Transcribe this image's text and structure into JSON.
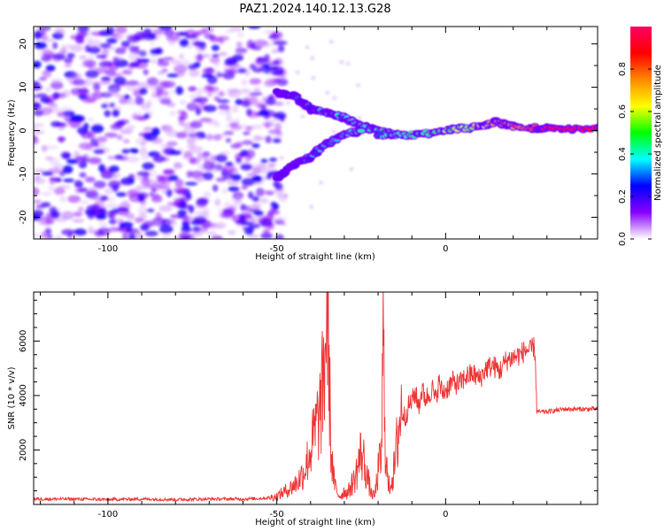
{
  "title": "PAZ1.2024.140.12.13.G28",
  "chart_data": [
    {
      "type": "heatmap",
      "xlabel": "Height of straight line (km)",
      "ylabel": "Frequency (Hz)",
      "xlim": [
        -122,
        45
      ],
      "ylim": [
        -25,
        24
      ],
      "x_ticks": [
        -100,
        -50,
        0
      ],
      "y_ticks": [
        -20,
        -10,
        0,
        10,
        20
      ],
      "colorbar": {
        "label": "Normalized spectral amplitude",
        "range": [
          0,
          1
        ],
        "ticks": [
          0.0,
          0.2,
          0.4,
          0.6,
          0.8
        ],
        "colormap": "gist_rainbow_r",
        "stops": [
          "#ffffff",
          "#8800ff",
          "#0000ff",
          "#00ffff",
          "#00ff00",
          "#ffff00",
          "#ff8800",
          "#ff0000",
          "#ff0066"
        ]
      },
      "noise_region": {
        "x": [
          -122,
          -50
        ],
        "y": [
          -25,
          24
        ],
        "level": 0.2
      },
      "signal_track": {
        "upper_branch": [
          [
            -50,
            9
          ],
          [
            -45,
            8
          ],
          [
            -40,
            5
          ],
          [
            -35,
            4
          ],
          [
            -30,
            3
          ],
          [
            -25,
            1
          ],
          [
            -20,
            0
          ],
          [
            -15,
            -1
          ]
        ],
        "lower_branch": [
          [
            -50,
            -11
          ],
          [
            -45,
            -8
          ],
          [
            -40,
            -6
          ],
          [
            -35,
            -3
          ],
          [
            -30,
            -1
          ],
          [
            -25,
            0
          ]
        ],
        "main_track": [
          [
            -20,
            -1
          ],
          [
            -10,
            -1
          ],
          [
            0,
            0
          ],
          [
            10,
            1
          ],
          [
            15,
            2
          ],
          [
            20,
            1
          ],
          [
            30,
            0.5
          ],
          [
            45,
            0.5
          ]
        ]
      }
    },
    {
      "type": "line",
      "xlabel": "Height of straight line (km)",
      "ylabel": "SNR (10 * v/v)",
      "xlim": [
        -122,
        45
      ],
      "ylim": [
        0,
        7800
      ],
      "x_ticks": [
        -100,
        -50,
        0
      ],
      "y_ticks": [
        2000,
        4000,
        6000
      ],
      "color": "#ee3333",
      "series": [
        {
          "x": [
            -122,
            -110,
            -100,
            -90,
            -80,
            -70,
            -60,
            -55,
            -52,
            -50,
            -48,
            -46,
            -44,
            -42,
            -40,
            -38,
            -37,
            -36,
            -35,
            -34.5,
            -34,
            -33,
            -32,
            -31,
            -30,
            -29,
            -28,
            -27,
            -26,
            -25,
            -24,
            -23,
            -22,
            -21,
            -20,
            -19,
            -18.5,
            -18,
            -17.5,
            -17,
            -16,
            -15,
            -14,
            -13,
            -12,
            -11,
            -10,
            -9,
            -8,
            -7,
            -6,
            -5,
            -4,
            -3,
            -2,
            -1,
            0,
            2,
            4,
            6,
            8,
            10,
            12,
            14,
            16,
            18,
            20,
            22,
            24,
            25,
            26,
            26.5,
            27,
            30,
            35,
            40,
            45
          ],
          "y": [
            200,
            200,
            180,
            200,
            180,
            200,
            200,
            220,
            250,
            300,
            450,
            600,
            800,
            1200,
            2000,
            3000,
            3500,
            4800,
            7600,
            5200,
            2000,
            800,
            400,
            300,
            500,
            400,
            700,
            900,
            1400,
            1900,
            1500,
            900,
            400,
            300,
            1200,
            1800,
            6000,
            3000,
            1500,
            600,
            900,
            1400,
            2800,
            3400,
            3200,
            3600,
            3800,
            4100,
            3600,
            4200,
            3900,
            4000,
            4300,
            3800,
            4500,
            4100,
            4200,
            4500,
            4400,
            4700,
            4800,
            4600,
            5000,
            5100,
            4900,
            5300,
            5400,
            5500,
            5700,
            5600,
            5800,
            5600,
            3400,
            3400,
            3500,
            3500,
            3500
          ]
        }
      ]
    }
  ]
}
